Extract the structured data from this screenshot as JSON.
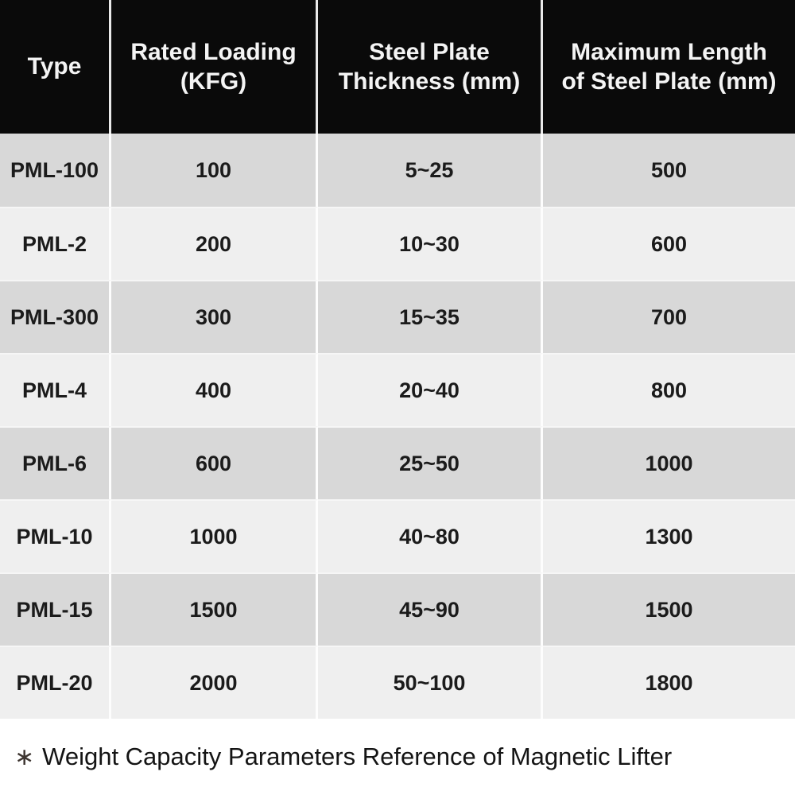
{
  "table": {
    "columns": [
      {
        "line1": "Type",
        "line2": ""
      },
      {
        "line1": "Rated Loading",
        "line2": "(KFG)"
      },
      {
        "line1": "Steel Plate",
        "line2": "Thickness (mm)"
      },
      {
        "line1": "Maximum Length",
        "line2": "of Steel Plate (mm)"
      }
    ],
    "rows": [
      [
        "PML-100",
        "100",
        "5~25",
        "500"
      ],
      [
        "PML-2",
        "200",
        "10~30",
        "600"
      ],
      [
        "PML-300",
        "300",
        "15~35",
        "700"
      ],
      [
        "PML-4",
        "400",
        "20~40",
        "800"
      ],
      [
        "PML-6",
        "600",
        "25~50",
        "1000"
      ],
      [
        "PML-10",
        "1000",
        "40~80",
        "1300"
      ],
      [
        "PML-15",
        "1500",
        "45~90",
        "1500"
      ],
      [
        "PML-20",
        "2000",
        "50~100",
        "1800"
      ]
    ]
  },
  "footer": {
    "marker": "∗",
    "note": "Weight Capacity Parameters Reference of Magnetic Lifter"
  },
  "colors": {
    "header_bg": "#0a0a0a",
    "header_text": "#f4f4f4",
    "row_dark": "#d8d8d8",
    "row_light": "#efefef",
    "separator": "#fdfdfd",
    "cell_text": "#1b1b1b",
    "page_bg": "#ffffff"
  }
}
